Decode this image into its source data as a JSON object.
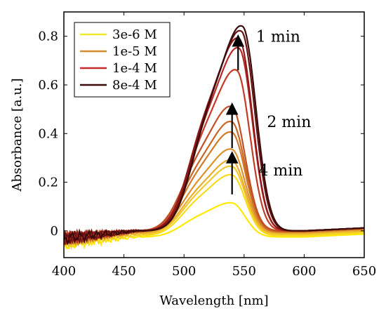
{
  "chart_data": {
    "type": "line",
    "xlabel": "Wavelength [nm]",
    "ylabel": "Absorbance [a.u.]",
    "xlim": [
      400,
      650
    ],
    "ylim": [
      -0.11,
      0.9
    ],
    "xticks": [
      400,
      450,
      500,
      550,
      600,
      650
    ],
    "yticks": [
      0,
      0.2,
      0.4,
      0.6,
      0.8
    ],
    "xtick_labels": [
      "400",
      "450",
      "500",
      "550",
      "600",
      "650"
    ],
    "ytick_labels": [
      "0",
      "0.2",
      "0.4",
      "0.6",
      "0.8"
    ],
    "grid": false,
    "legend_position": "top-left",
    "legend": [
      {
        "label": "3e-6 M",
        "color": "#f0e92a"
      },
      {
        "label": "1e-5 M",
        "color": "#d58a2b"
      },
      {
        "label": "1e-4 M",
        "color": "#c82b2b"
      },
      {
        "label": "8e-4 M",
        "color": "#3a0c0c"
      }
    ],
    "annotations": [
      {
        "text": "1 min",
        "x": 560,
        "y": 0.8
      },
      {
        "text": "2 min",
        "x": 569,
        "y": 0.45
      },
      {
        "text": "4 min",
        "x": 562,
        "y": 0.25
      }
    ],
    "arrows": [
      {
        "x": 545,
        "y_from": 0.66,
        "y_to": 0.8
      },
      {
        "x": 540,
        "y_from": 0.34,
        "y_to": 0.52
      },
      {
        "x": 540,
        "y_from": 0.15,
        "y_to": 0.32
      }
    ],
    "series": [
      {
        "color": "#ffea00",
        "peak": 0.14,
        "peak_x": 540,
        "base": -0.025
      },
      {
        "color": "#f8dc1c",
        "peak": 0.25,
        "peak_x": 540,
        "base": -0.02
      },
      {
        "color": "#f3c82c",
        "peak": 0.28,
        "peak_x": 540,
        "base": -0.015
      },
      {
        "color": "#e9ad2e",
        "peak": 0.3,
        "peak_x": 540,
        "base": -0.01
      },
      {
        "color": "#dd912c",
        "peak": 0.34,
        "peak_x": 540,
        "base": -0.005
      },
      {
        "color": "#d27a28",
        "peak": 0.41,
        "peak_x": 540,
        "base": -0.005
      },
      {
        "color": "#c96626",
        "peak": 0.45,
        "peak_x": 540,
        "base": -0.002
      },
      {
        "color": "#c25024",
        "peak": 0.51,
        "peak_x": 540,
        "base": 0.0
      },
      {
        "color": "#c53a27",
        "peak": 0.66,
        "peak_x": 544,
        "base": 0.0
      },
      {
        "color": "#b52727",
        "peak": 0.75,
        "peak_x": 546,
        "base": 0.0
      },
      {
        "color": "#8f1a1a",
        "peak": 0.79,
        "peak_x": 546,
        "base": 0.0
      },
      {
        "color": "#661313",
        "peak": 0.82,
        "peak_x": 548,
        "base": 0.0
      },
      {
        "color": "#3a0c0c",
        "peak": 0.84,
        "peak_x": 549,
        "base": 0.0
      }
    ]
  }
}
